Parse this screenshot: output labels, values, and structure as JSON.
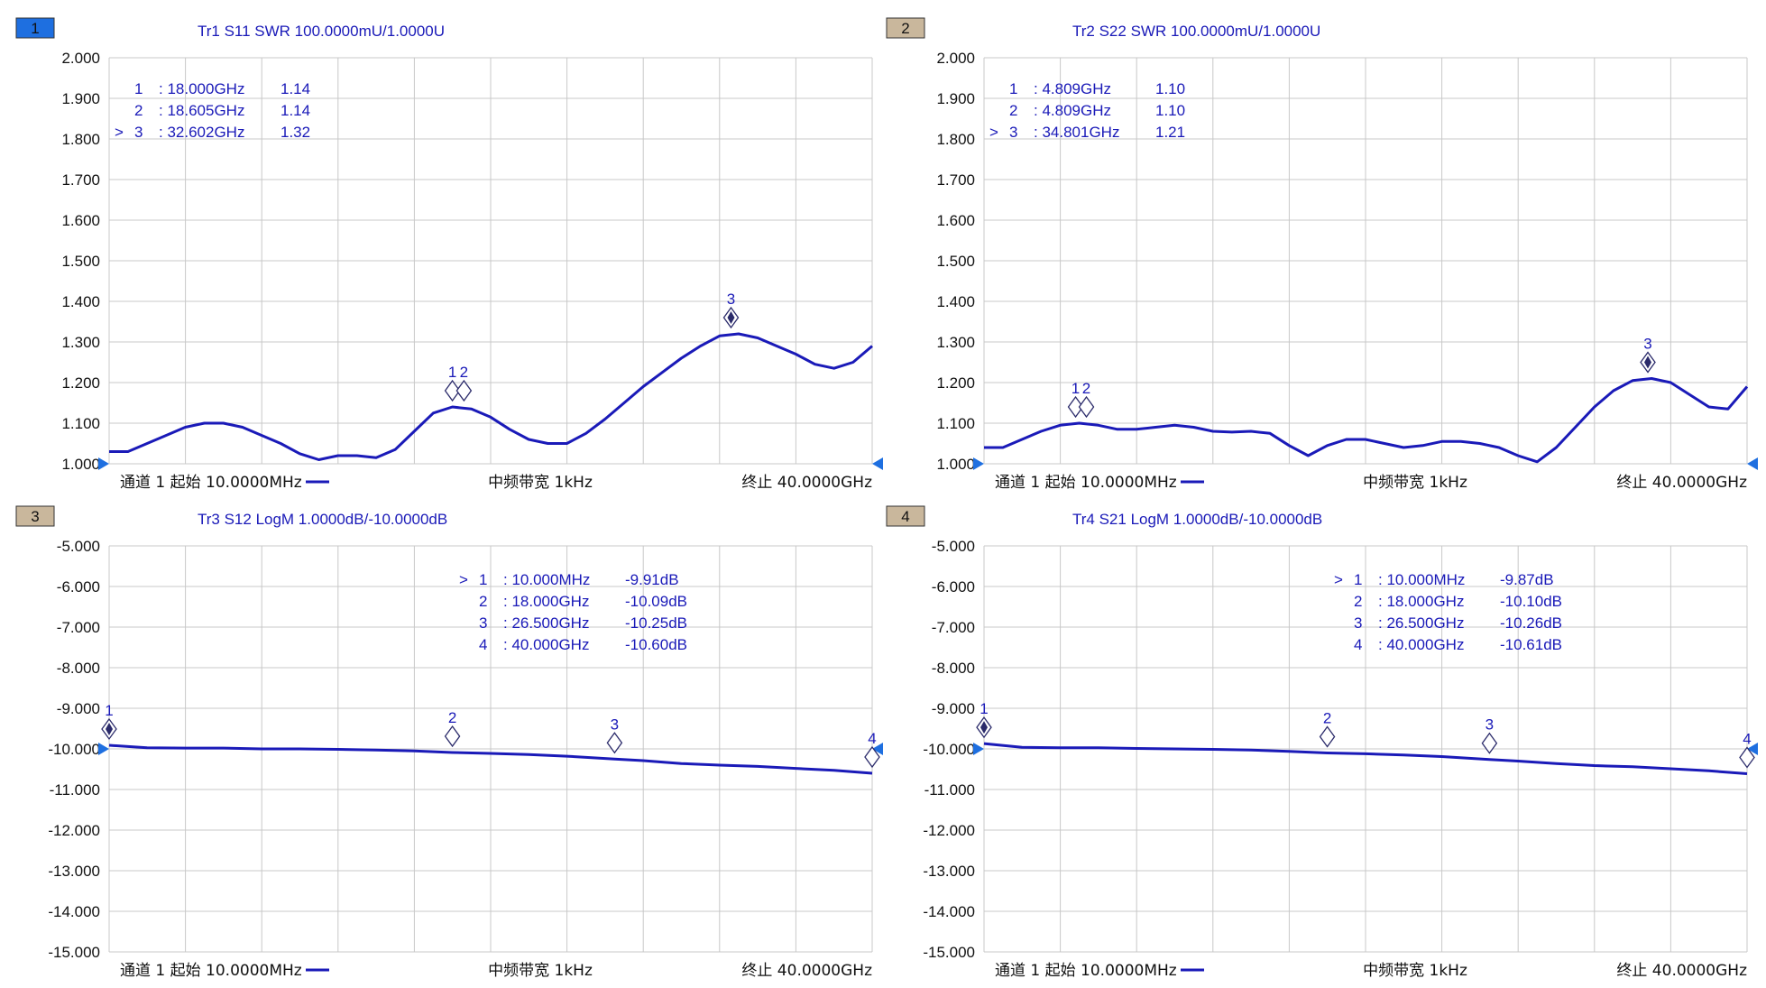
{
  "colors": {
    "trace": "#1a1ab8",
    "grid": "#c8c8c8",
    "active_badge": "#1e6fe0",
    "inactive_badge": "#c9b79c",
    "text": "#111111"
  },
  "charts": [
    {
      "badge": "1",
      "active": true,
      "title": "Tr1 S11 SWR 100.0000mU/1.0000U",
      "ylim": [
        1.0,
        2.0
      ],
      "y_step": 0.1,
      "y_decimals": 3,
      "marker_table": [
        {
          "active": false,
          "id": "1",
          "freq": ": 18.000GHz",
          "value": "1.14"
        },
        {
          "active": false,
          "id": "2",
          "freq": ": 18.605GHz",
          "value": "1.14"
        },
        {
          "active": true,
          "id": "3",
          "freq": ": 32.602GHz",
          "value": "1.32"
        }
      ],
      "footer": {
        "left": "通道 1 起始 10.0000MHz",
        "center": "中频带宽 1kHz",
        "right": "终止 40.0000GHz"
      }
    },
    {
      "badge": "2",
      "active": false,
      "title": "Tr2 S22 SWR 100.0000mU/1.0000U",
      "ylim": [
        1.0,
        2.0
      ],
      "y_step": 0.1,
      "y_decimals": 3,
      "marker_table": [
        {
          "active": false,
          "id": "1",
          "freq": ": 4.809GHz",
          "value": "1.10"
        },
        {
          "active": false,
          "id": "2",
          "freq": ": 4.809GHz",
          "value": "1.10"
        },
        {
          "active": true,
          "id": "3",
          "freq": ": 34.801GHz",
          "value": "1.21"
        }
      ],
      "footer": {
        "left": "通道 1 起始 10.0000MHz",
        "center": "中频带宽 1kHz",
        "right": "终止 40.0000GHz"
      }
    },
    {
      "badge": "3",
      "active": false,
      "title": "Tr3 S12 LogM 1.0000dB/-10.0000dB",
      "ylim": [
        -15.0,
        -5.0
      ],
      "y_step": 1.0,
      "y_decimals": 3,
      "marker_table": [
        {
          "active": true,
          "id": "1",
          "freq": ": 10.000MHz",
          "value": "-9.91dB"
        },
        {
          "active": false,
          "id": "2",
          "freq": ": 18.000GHz",
          "value": "-10.09dB"
        },
        {
          "active": false,
          "id": "3",
          "freq": ": 26.500GHz",
          "value": "-10.25dB"
        },
        {
          "active": false,
          "id": "4",
          "freq": ": 40.000GHz",
          "value": "-10.60dB"
        }
      ],
      "footer": {
        "left": "通道 1 起始 10.0000MHz",
        "center": "中频带宽 1kHz",
        "right": "终止 40.0000GHz"
      }
    },
    {
      "badge": "4",
      "active": false,
      "title": "Tr4 S21 LogM 1.0000dB/-10.0000dB",
      "ylim": [
        -15.0,
        -5.0
      ],
      "y_step": 1.0,
      "y_decimals": 3,
      "marker_table": [
        {
          "active": true,
          "id": "1",
          "freq": ": 10.000MHz",
          "value": "-9.87dB"
        },
        {
          "active": false,
          "id": "2",
          "freq": ": 18.000GHz",
          "value": "-10.10dB"
        },
        {
          "active": false,
          "id": "3",
          "freq": ": 26.500GHz",
          "value": "-10.26dB"
        },
        {
          "active": false,
          "id": "4",
          "freq": ": 40.000GHz",
          "value": "-10.61dB"
        }
      ],
      "footer": {
        "left": "通道 1 起始 10.0000MHz",
        "center": "中频带宽 1kHz",
        "right": "终止 40.0000GHz"
      }
    }
  ],
  "chart_data": [
    {
      "type": "line",
      "title": "Tr1 S11 SWR 100.0000mU/1.0000U",
      "x_unit": "GHz",
      "xlim": [
        0.01,
        40.0
      ],
      "ylim": [
        1.0,
        2.0
      ],
      "grid": true,
      "series": [
        {
          "name": "S11",
          "x": [
            0.01,
            1,
            2,
            3,
            4,
            5,
            6,
            7,
            8,
            9,
            10,
            11,
            12,
            13,
            14,
            15,
            16,
            17,
            18,
            19,
            20,
            21,
            22,
            23,
            24,
            25,
            26,
            27,
            28,
            29,
            30,
            31,
            32,
            33,
            34,
            35,
            36,
            37,
            38,
            39,
            40
          ],
          "y": [
            1.03,
            1.03,
            1.05,
            1.07,
            1.09,
            1.1,
            1.1,
            1.09,
            1.07,
            1.05,
            1.025,
            1.01,
            1.02,
            1.02,
            1.015,
            1.035,
            1.08,
            1.125,
            1.14,
            1.135,
            1.115,
            1.085,
            1.06,
            1.05,
            1.05,
            1.075,
            1.11,
            1.15,
            1.19,
            1.225,
            1.26,
            1.29,
            1.315,
            1.32,
            1.31,
            1.29,
            1.27,
            1.245,
            1.235,
            1.25,
            1.29
          ]
        }
      ],
      "markers": [
        {
          "id": "1",
          "x": 18.0,
          "y": 1.14
        },
        {
          "id": "2",
          "x": 18.605,
          "y": 1.14
        },
        {
          "id": "3",
          "x": 32.602,
          "y": 1.32
        }
      ]
    },
    {
      "type": "line",
      "title": "Tr2 S22 SWR 100.0000mU/1.0000U",
      "x_unit": "GHz",
      "xlim": [
        0.01,
        40.0
      ],
      "ylim": [
        1.0,
        2.0
      ],
      "grid": true,
      "series": [
        {
          "name": "S22",
          "x": [
            0.01,
            1,
            2,
            3,
            4,
            5,
            6,
            7,
            8,
            9,
            10,
            11,
            12,
            13,
            14,
            15,
            16,
            17,
            18,
            19,
            20,
            21,
            22,
            23,
            24,
            25,
            26,
            27,
            28,
            29,
            30,
            31,
            32,
            33,
            34,
            35,
            36,
            37,
            38,
            39,
            40
          ],
          "y": [
            1.04,
            1.04,
            1.06,
            1.08,
            1.095,
            1.1,
            1.095,
            1.085,
            1.085,
            1.09,
            1.095,
            1.09,
            1.08,
            1.078,
            1.08,
            1.075,
            1.045,
            1.02,
            1.045,
            1.06,
            1.06,
            1.05,
            1.04,
            1.045,
            1.055,
            1.055,
            1.05,
            1.04,
            1.02,
            1.005,
            1.04,
            1.09,
            1.14,
            1.18,
            1.205,
            1.21,
            1.2,
            1.17,
            1.14,
            1.135,
            1.19
          ]
        }
      ],
      "markers": [
        {
          "id": "1",
          "x": 4.809,
          "y": 1.1
        },
        {
          "id": "2",
          "x": 4.809,
          "y": 1.1
        },
        {
          "id": "3",
          "x": 34.801,
          "y": 1.21
        }
      ]
    },
    {
      "type": "line",
      "title": "Tr3 S12 LogM 1.0000dB/-10.0000dB",
      "x_unit": "GHz",
      "xlim": [
        0.01,
        40.0
      ],
      "ylim": [
        -15.0,
        -5.0
      ],
      "grid": true,
      "series": [
        {
          "name": "S12",
          "x": [
            0.01,
            2,
            4,
            6,
            8,
            10,
            12,
            14,
            16,
            18,
            20,
            22,
            24,
            26.5,
            28,
            30,
            32,
            34,
            36,
            38,
            40
          ],
          "y": [
            -9.91,
            -9.97,
            -9.98,
            -9.98,
            -10.0,
            -10.0,
            -10.01,
            -10.03,
            -10.05,
            -10.09,
            -10.11,
            -10.14,
            -10.18,
            -10.25,
            -10.29,
            -10.36,
            -10.4,
            -10.43,
            -10.48,
            -10.53,
            -10.6
          ]
        }
      ],
      "markers": [
        {
          "id": "1",
          "x": 0.01,
          "y": -9.91
        },
        {
          "id": "2",
          "x": 18.0,
          "y": -10.09
        },
        {
          "id": "3",
          "x": 26.5,
          "y": -10.25
        },
        {
          "id": "4",
          "x": 40.0,
          "y": -10.6
        }
      ]
    },
    {
      "type": "line",
      "title": "Tr4 S21 LogM 1.0000dB/-10.0000dB",
      "x_unit": "GHz",
      "xlim": [
        0.01,
        40.0
      ],
      "ylim": [
        -15.0,
        -5.0
      ],
      "grid": true,
      "series": [
        {
          "name": "S21",
          "x": [
            0.01,
            2,
            4,
            6,
            8,
            10,
            12,
            14,
            16,
            18,
            20,
            22,
            24,
            26.5,
            28,
            30,
            32,
            34,
            36,
            38,
            40
          ],
          "y": [
            -9.87,
            -9.96,
            -9.97,
            -9.97,
            -9.99,
            -10.0,
            -10.01,
            -10.03,
            -10.06,
            -10.1,
            -10.12,
            -10.15,
            -10.19,
            -10.26,
            -10.3,
            -10.36,
            -10.41,
            -10.44,
            -10.49,
            -10.54,
            -10.61
          ]
        }
      ],
      "markers": [
        {
          "id": "1",
          "x": 0.01,
          "y": -9.87
        },
        {
          "id": "2",
          "x": 18.0,
          "y": -10.1
        },
        {
          "id": "3",
          "x": 26.5,
          "y": -10.26
        },
        {
          "id": "4",
          "x": 40.0,
          "y": -10.61
        }
      ]
    }
  ]
}
